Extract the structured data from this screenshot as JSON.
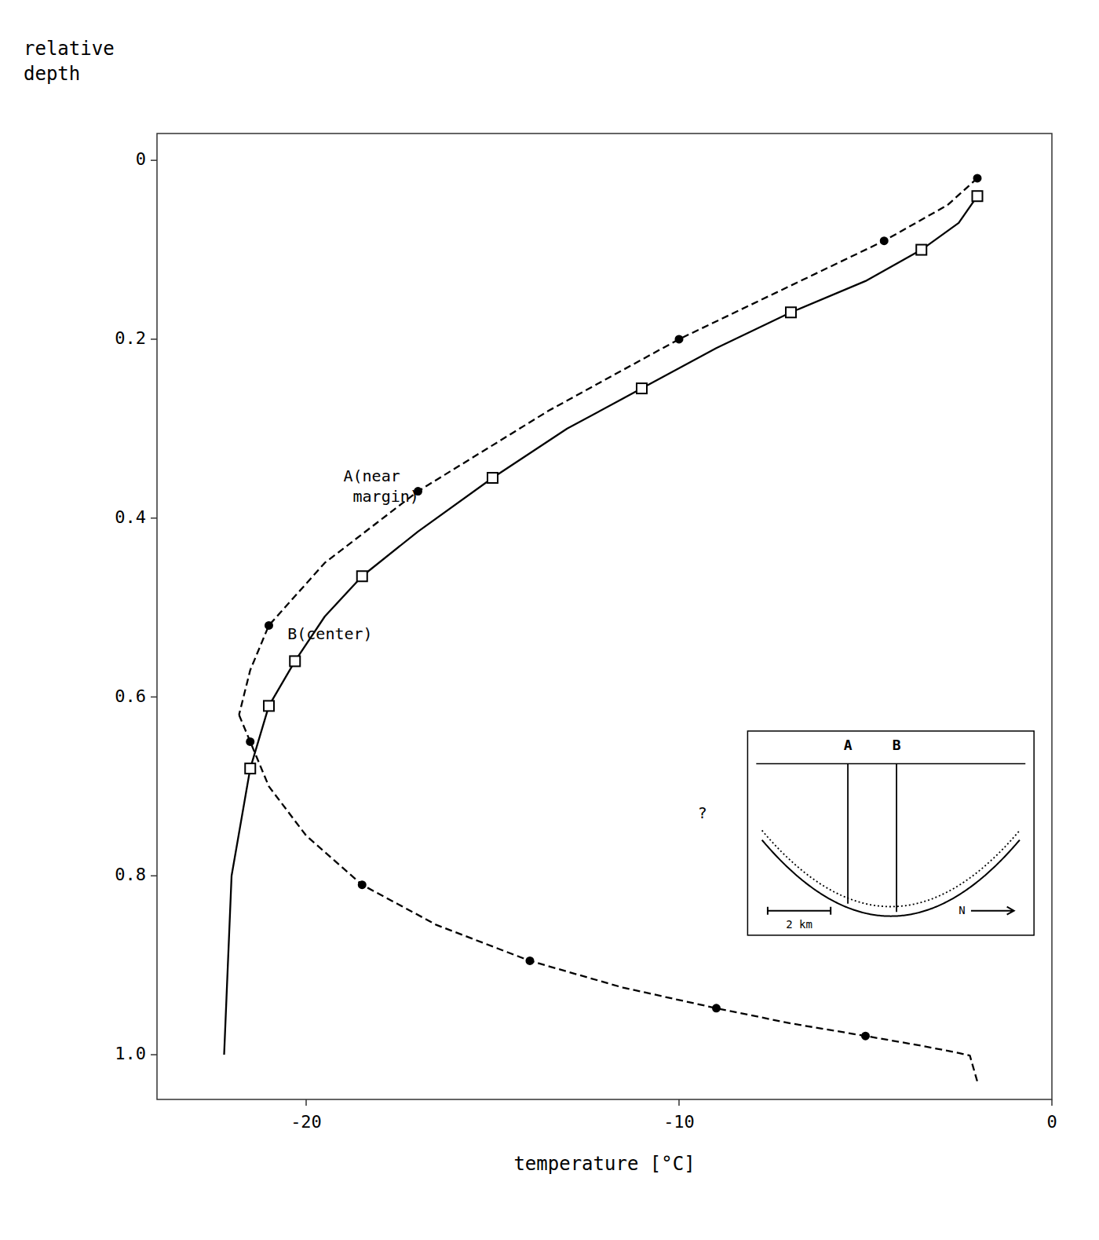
{
  "chart_data": {
    "type": "line",
    "xlabel": "temperature [°C]",
    "ylabel": "relative\ndepth",
    "xlim": [
      -24,
      0
    ],
    "ylim": [
      1.05,
      -0.03
    ],
    "xticks": [
      -20,
      -10,
      0
    ],
    "yticks": [
      0,
      0.2,
      0.4,
      0.6,
      0.8,
      {
        "value": 1.0,
        "label": "1.0"
      }
    ],
    "grid": false,
    "series": [
      {
        "type": "line",
        "line_style": "solid",
        "color": "#000000",
        "x": [
          -2.0,
          -2.5,
          -3.5,
          -5.0,
          -7.0,
          -9.0,
          -11.0,
          -13.0,
          -15.0,
          -17.0,
          -18.5,
          -19.5,
          -20.3,
          -21.0,
          -21.5,
          -22.0,
          -22.2
        ],
        "values": [
          0.04,
          0.07,
          0.1,
          0.135,
          0.17,
          0.21,
          0.255,
          0.3,
          0.355,
          0.415,
          0.465,
          0.51,
          0.56,
          0.61,
          0.68,
          0.8,
          1.0
        ]
      },
      {
        "type": "scatter",
        "marker": "square",
        "color": "#000000",
        "x": [
          -2.0,
          -3.5,
          -7.0,
          -11.0,
          -15.0,
          -18.5,
          -20.3,
          -21.0,
          -21.5
        ],
        "values": [
          0.04,
          0.1,
          0.17,
          0.255,
          0.355,
          0.465,
          0.56,
          0.61,
          0.68
        ]
      },
      {
        "type": "line",
        "line_style": "dashed",
        "color": "#000000",
        "x": [
          -2.0,
          -2.8,
          -4.5,
          -7.0,
          -10.0,
          -13.5,
          -17.0,
          -19.5,
          -21.0,
          -21.5,
          -21.8
        ],
        "values": [
          0.02,
          0.05,
          0.09,
          0.14,
          0.2,
          0.28,
          0.37,
          0.45,
          0.52,
          0.57,
          0.62
        ]
      },
      {
        "type": "scatter",
        "marker": "circle",
        "color": "#000000",
        "x": [
          -2.0,
          -4.5,
          -10.0,
          -17.0,
          -21.0
        ],
        "values": [
          0.02,
          0.09,
          0.2,
          0.37,
          0.52
        ]
      },
      {
        "type": "line",
        "line_style": "dashed",
        "color": "#000000",
        "x": [
          -21.8,
          -21.5,
          -21.0,
          -20.0,
          -18.5,
          -16.5,
          -14.0,
          -11.5,
          -9.0,
          -7.0,
          -5.0,
          -3.5,
          -2.5,
          -2.2,
          -2.0
        ],
        "values": [
          0.62,
          0.65,
          0.7,
          0.755,
          0.81,
          0.855,
          0.895,
          0.925,
          0.948,
          0.965,
          0.979,
          0.99,
          0.998,
          1.001,
          1.03
        ]
      },
      {
        "type": "scatter",
        "marker": "circle",
        "color": "#000000",
        "x": [
          -21.5,
          -18.5,
          -14.0,
          -9.0,
          -5.0
        ],
        "values": [
          0.65,
          0.81,
          0.895,
          0.948,
          0.979
        ]
      }
    ],
    "annotations": [
      {
        "text": "A(near\n margin)",
        "x": -19.0,
        "y": 0.365
      },
      {
        "text": "B(center)",
        "x": -20.5,
        "y": 0.53
      },
      {
        "text": "?",
        "x": -9.5,
        "y": 0.73
      }
    ],
    "inset_labels": [
      "A",
      "B",
      "2 km",
      "N"
    ]
  }
}
